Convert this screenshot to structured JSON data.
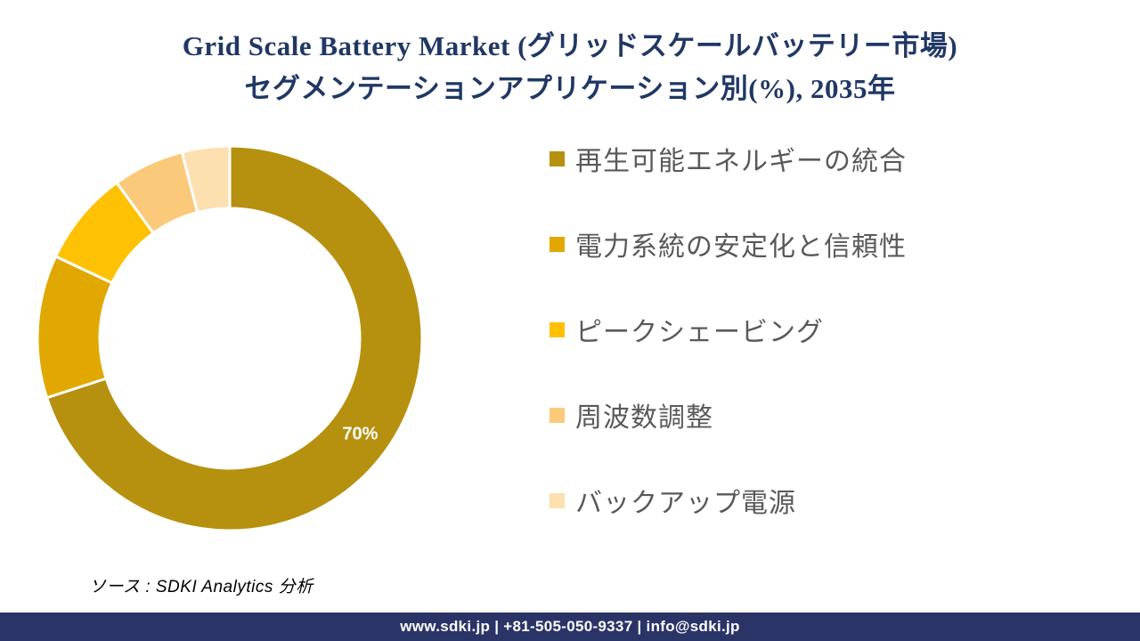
{
  "title": {
    "line1": "Grid Scale Battery Market (グリッドスケールバッテリー市場)",
    "line2": "セグメンテーションアプリケーション別(%), 2035年",
    "color": "#203864"
  },
  "chart_data": {
    "type": "pie",
    "subtype": "donut",
    "title": "Grid Scale Battery Market segmentation by application (%), 2035",
    "categories": [
      "再生可能エネルギーの統合",
      "電力系統の安定化と信頼性",
      "ピークシェービング",
      "周波数調整",
      "バックアップ電源"
    ],
    "values": [
      70,
      12,
      8,
      6,
      4
    ],
    "unit": "%",
    "colors": [
      "#B6900F",
      "#E0A800",
      "#FFC103",
      "#FACA7A",
      "#FDE0AF"
    ],
    "data_labels": [
      "70%",
      "",
      "",
      "",
      ""
    ],
    "data_label_color": "#FFFFFF",
    "start_angle_deg": 0,
    "direction": "clockwise",
    "inner_radius_ratio": 0.675,
    "separator_color": "#FFFFFF",
    "legend_position": "right",
    "legend_text_color": "#595959"
  },
  "source": {
    "text": "ソース : SDKI Analytics  分析"
  },
  "footer": {
    "text": "www.sdki.jp | +81-505-050-9337 | info@sdki.jp",
    "bg_color": "#2B3467",
    "text_color": "#FFFFFF"
  }
}
